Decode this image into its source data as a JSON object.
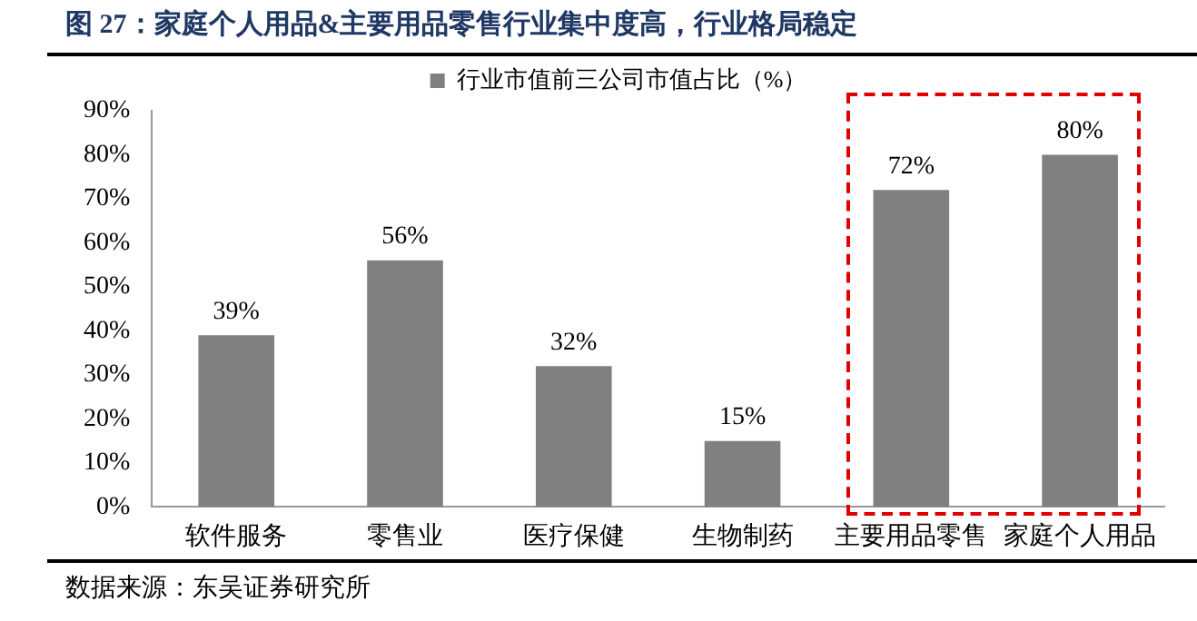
{
  "chart_data": {
    "type": "bar",
    "title": "图 27：家庭个人用品&主要用品零售行业集中度高，行业格局稳定",
    "categories": [
      "软件服务",
      "零售业",
      "医疗保健",
      "生物制药",
      "主要用品零售",
      "家庭个人用品"
    ],
    "series": [
      {
        "name": "行业市值前三公司市值占比（%）",
        "color": "#808080",
        "values": [
          39,
          56,
          32,
          15,
          72,
          80
        ]
      }
    ],
    "ylim": [
      0,
      90
    ],
    "yticks": [
      {
        "value": 0,
        "label": "0%"
      },
      {
        "value": 10,
        "label": "10%"
      },
      {
        "value": 20,
        "label": "20%"
      },
      {
        "value": 30,
        "label": "30%"
      },
      {
        "value": 40,
        "label": "40%"
      },
      {
        "value": 50,
        "label": "50%"
      },
      {
        "value": 60,
        "label": "60%"
      },
      {
        "value": 70,
        "label": "70%"
      },
      {
        "value": 80,
        "label": "80%"
      },
      {
        "value": 90,
        "label": "90%"
      }
    ],
    "value_labels": [
      "39%",
      "56%",
      "32%",
      "15%",
      "72%",
      "80%"
    ],
    "legend": "top",
    "grid": false,
    "annotations": [
      "数据来源：东吴证券研究所"
    ]
  }
}
